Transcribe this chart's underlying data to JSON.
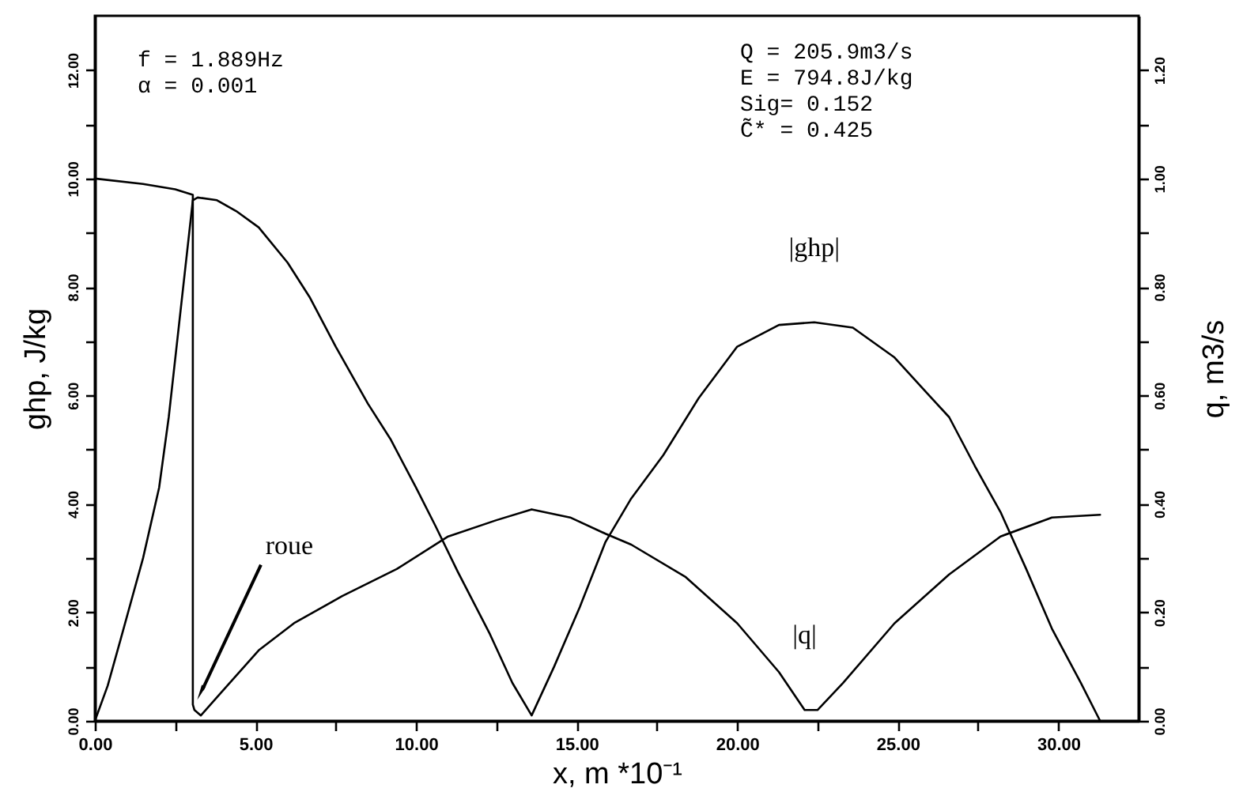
{
  "chart_data": {
    "type": "line",
    "xlabel": "x,  m  *10⁻¹",
    "ylabel": "ghp,  J/kg",
    "y2label": "q,  m3/s",
    "xlim": [
      0,
      32.5
    ],
    "xticks": [
      {
        "value": 0,
        "label": "0.00"
      },
      {
        "value": 2.5,
        "label": null
      },
      {
        "value": 5,
        "label": "5.00"
      },
      {
        "value": 7.5,
        "label": null
      },
      {
        "value": 10,
        "label": "10.00"
      },
      {
        "value": 12.5,
        "label": null
      },
      {
        "value": 15,
        "label": "15.00"
      },
      {
        "value": 17.5,
        "label": null
      },
      {
        "value": 20,
        "label": "20.00"
      },
      {
        "value": 22.5,
        "label": null
      },
      {
        "value": 25,
        "label": "25.00"
      },
      {
        "value": 27.5,
        "label": null
      },
      {
        "value": 30,
        "label": "30.00"
      }
    ],
    "ylim": [
      0,
      13
    ],
    "yticks": [
      {
        "value": 0,
        "label": "0.00"
      },
      {
        "value": 1,
        "label": null
      },
      {
        "value": 2,
        "label": "2.00"
      },
      {
        "value": 3,
        "label": null
      },
      {
        "value": 4,
        "label": "4.00"
      },
      {
        "value": 5,
        "label": null
      },
      {
        "value": 6,
        "label": "6.00"
      },
      {
        "value": 7,
        "label": null
      },
      {
        "value": 8,
        "label": "8.00"
      },
      {
        "value": 9,
        "label": null
      },
      {
        "value": 10,
        "label": "10.00"
      },
      {
        "value": 11,
        "label": null
      },
      {
        "value": 12,
        "label": "12.00"
      }
    ],
    "y2lim": [
      0,
      1.3
    ],
    "y2ticks": [
      {
        "value": 0,
        "label": "0.00"
      },
      {
        "value": 0.1,
        "label": null
      },
      {
        "value": 0.2,
        "label": "0.20"
      },
      {
        "value": 0.3,
        "label": null
      },
      {
        "value": 0.4,
        "label": "0.40"
      },
      {
        "value": 0.5,
        "label": null
      },
      {
        "value": 0.6,
        "label": "0.60"
      },
      {
        "value": 0.7,
        "label": null
      },
      {
        "value": 0.8,
        "label": "0.80"
      },
      {
        "value": 0.9,
        "label": null
      },
      {
        "value": 1.0,
        "label": "1.00"
      },
      {
        "value": 1.1,
        "label": null
      },
      {
        "value": 1.2,
        "label": "1.20"
      }
    ],
    "line_style": "solid",
    "annotations": [
      "f  = 1.889Hz\nα  = 0.001",
      "Q  = 205.9m3/s\nE  = 794.8J/kg\nSig= 0.152\nC̃* = 0.425",
      {
        "text": "roue",
        "x": 3.2,
        "y": 0.4
      }
    ],
    "series": [
      {
        "name": "|ghp|",
        "color": "#000000",
        "x": [
          0,
          0.4,
          0.8,
          1.5,
          2.0,
          2.3,
          3.05,
          3.2,
          3.8,
          4.4,
          5.1,
          6.0,
          6.7,
          7.5,
          8.5,
          9.2,
          10.0,
          10.6,
          11.3,
          12.3,
          13.0,
          13.6,
          14.3,
          15.1,
          15.9,
          16.7,
          17.7,
          18.8,
          20.0,
          21.3,
          22.4,
          23.6,
          24.9,
          25.9,
          26.6,
          27.4,
          28.2,
          29.0,
          29.8,
          30.7,
          31.3
        ],
        "values": [
          0,
          0.65,
          1.5,
          3.0,
          4.3,
          5.6,
          9.6,
          9.65,
          9.6,
          9.4,
          9.1,
          8.45,
          7.8,
          6.9,
          5.85,
          5.2,
          4.3,
          3.6,
          2.75,
          1.6,
          0.7,
          0.1,
          1.0,
          2.1,
          3.3,
          4.1,
          4.9,
          5.95,
          6.9,
          7.3,
          7.35,
          7.25,
          6.7,
          6.05,
          5.6,
          4.7,
          3.85,
          2.8,
          1.7,
          0.7,
          0
        ]
      },
      {
        "name": "|q|",
        "color": "#000000",
        "axis": "y2",
        "x": [
          0,
          1.5,
          2.5,
          3.05,
          3.05,
          3.1,
          3.3,
          3.9,
          5.1,
          6.2,
          7.7,
          9.4,
          11.0,
          12.5,
          13.6,
          14.8,
          15.9,
          16.7,
          18.4,
          20.0,
          21.3,
          22.1,
          22.5,
          23.3,
          24.9,
          26.6,
          28.2,
          29.8,
          31.3
        ],
        "values": [
          1.0,
          0.99,
          0.98,
          0.97,
          0.03,
          0.02,
          0.01,
          0.05,
          0.13,
          0.18,
          0.23,
          0.28,
          0.34,
          0.37,
          0.39,
          0.375,
          0.345,
          0.325,
          0.265,
          0.18,
          0.09,
          0.02,
          0.02,
          0.07,
          0.18,
          0.27,
          0.34,
          0.375,
          0.38
        ]
      }
    ]
  }
}
